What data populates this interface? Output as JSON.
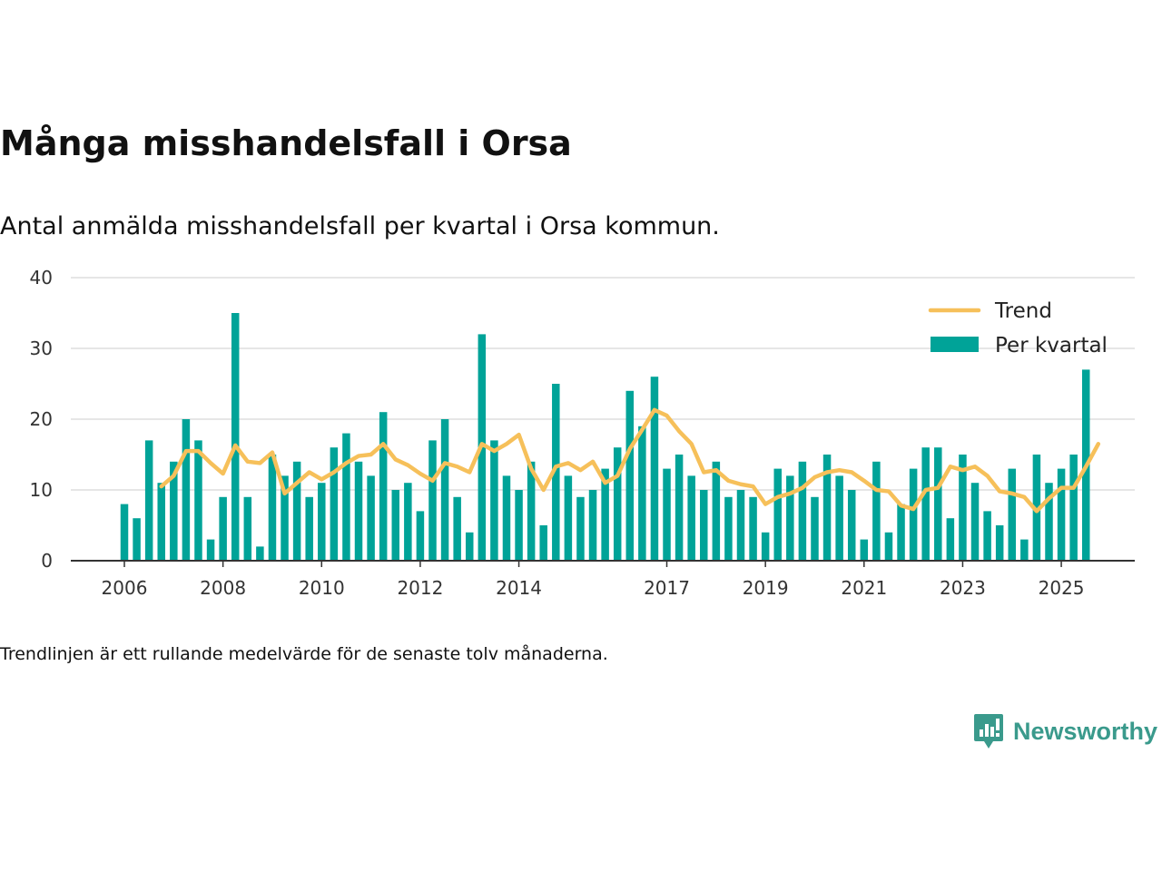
{
  "title": "Många misshandelsfall i Orsa",
  "subtitle": "Antal anmälda misshandelsfall per kvartal i Orsa kommun.",
  "footnote": "Trendlinjen är ett rullande medelvärde för de senaste tolv månaderna.",
  "brand": {
    "name": "Newsworthy",
    "icon": "newsworthy-logo-icon"
  },
  "colors": {
    "bar": "#00a398",
    "trend": "#f6c05a",
    "grid": "#dddddd",
    "axis": "#333333",
    "brand": "#3a9a8c"
  },
  "chart_data": {
    "type": "bar",
    "title": "Antal anmälda misshandelsfall per kvartal i Orsa kommun.",
    "xlabel": "",
    "ylabel": "",
    "ylim": [
      0,
      40
    ],
    "yticks": [
      0,
      10,
      20,
      30,
      40
    ],
    "grid": true,
    "legend_position": "top-right",
    "x_ticks": [
      {
        "label": "2006",
        "index": 0
      },
      {
        "label": "2008",
        "index": 8
      },
      {
        "label": "2010",
        "index": 16
      },
      {
        "label": "2012",
        "index": 24
      },
      {
        "label": "2014",
        "index": 32
      },
      {
        "label": "2017",
        "index": 44
      },
      {
        "label": "2019",
        "index": 52
      },
      {
        "label": "2021",
        "index": 60
      },
      {
        "label": "2023",
        "index": 68
      },
      {
        "label": "2025",
        "index": 76
      }
    ],
    "series": [
      {
        "name": "Per kvartal",
        "type": "bar",
        "values": [
          8,
          6,
          17,
          11,
          14,
          20,
          17,
          3,
          9,
          35,
          9,
          2,
          15,
          12,
          14,
          9,
          11,
          16,
          18,
          14,
          12,
          21,
          10,
          11,
          7,
          17,
          20,
          9,
          4,
          32,
          17,
          12,
          10,
          14,
          5,
          25,
          12,
          9,
          10,
          13,
          16,
          24,
          19,
          26,
          13,
          15,
          12,
          10,
          14,
          9,
          10,
          9,
          4,
          13,
          12,
          14,
          9,
          15,
          12,
          10,
          3,
          14,
          4,
          8,
          13,
          16,
          16,
          6,
          15,
          11,
          7,
          5,
          13,
          3,
          15,
          11,
          13,
          15,
          27
        ]
      },
      {
        "name": "Trend",
        "type": "line",
        "start_index": 3,
        "values": [
          10.5,
          12,
          15.5,
          15.5,
          13.8,
          12.3,
          16.3,
          14,
          13.8,
          15.3,
          9.5,
          11,
          12.5,
          11.5,
          12.5,
          13.8,
          14.8,
          15,
          16.5,
          14.3,
          13.5,
          12.3,
          11.3,
          13.8,
          13.3,
          12.5,
          16.5,
          15.5,
          16.5,
          17.8,
          13,
          10,
          13.3,
          13.8,
          12.8,
          14,
          11,
          12,
          15.8,
          18.5,
          21.3,
          20.5,
          18.3,
          16.5,
          12.5,
          12.8,
          11.3,
          10.8,
          10.5,
          8,
          9,
          9.5,
          10.3,
          11.8,
          12.5,
          12.8,
          12.5,
          11.3,
          10,
          9.8,
          7.8,
          7.3,
          10,
          10.3,
          13.3,
          12.8,
          13.3,
          12,
          9.8,
          9.5,
          9,
          7,
          8.8,
          10.3,
          10.3,
          13.3,
          16.5
        ]
      }
    ]
  }
}
